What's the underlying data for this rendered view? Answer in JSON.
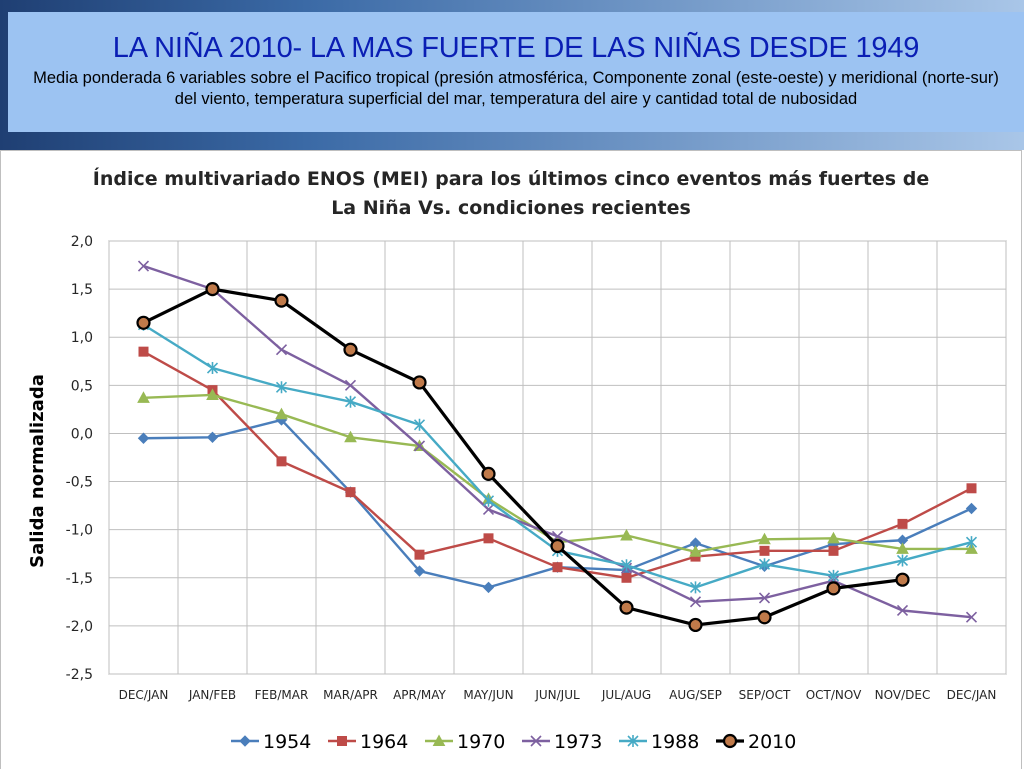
{
  "slide": {
    "title": "LA NIÑA 2010- LA MAS FUERTE DE LAS NIÑAS DESDE 1949",
    "subtitle": "Media ponderada 6 variables sobre el Pacifico tropical (presión atmosférica, Componente zonal (este-oeste) y meridional (norte-sur) del viento, temperatura superficial del mar, temperatura del aire y cantidad total de nubosidad"
  },
  "chart_data": {
    "type": "line",
    "title_lines": [
      "Índice multivariado ENOS (MEI) para los últimos cinco eventos más fuertes de",
      "La Niña Vs. condiciones recientes"
    ],
    "xlabel": "",
    "ylabel": "Salida normalizada",
    "ylim": [
      -2.5,
      2.0
    ],
    "ytick_values": [
      2.0,
      1.5,
      1.0,
      0.5,
      0.0,
      -0.5,
      -1.0,
      -1.5,
      -2.0,
      -2.5
    ],
    "yticks": [
      "2,0",
      "1,5",
      "1,0",
      "0,5",
      "0,0",
      "-0,5",
      "-1,0",
      "-1,5",
      "-2,0",
      "-2,5"
    ],
    "grid": true,
    "legend_position": "bottom",
    "categories": [
      "DEC/JAN",
      "JAN/FEB",
      "FEB/MAR",
      "MAR/APR",
      "APR/MAY",
      "MAY/JUN",
      "JUN/JUL",
      "JUL/AUG",
      "AUG/SEP",
      "SEP/OCT",
      "OCT/NOV",
      "NOV/DEC",
      "DEC/JAN"
    ],
    "series": [
      {
        "name": "1954",
        "color": "#4a7ebb",
        "marker": "diamond",
        "values": [
          -0.05,
          -0.04,
          0.14,
          -0.61,
          -1.43,
          -1.6,
          -1.39,
          -1.42,
          -1.14,
          -1.38,
          -1.15,
          -1.11,
          -0.78
        ]
      },
      {
        "name": "1964",
        "color": "#be4b48",
        "marker": "square",
        "values": [
          0.85,
          0.45,
          -0.29,
          -0.61,
          -1.26,
          -1.09,
          -1.39,
          -1.5,
          -1.28,
          -1.22,
          -1.22,
          -0.94,
          -0.57
        ]
      },
      {
        "name": "1970",
        "color": "#98b954",
        "marker": "triangle",
        "values": [
          0.37,
          0.4,
          0.2,
          -0.04,
          -0.13,
          -0.68,
          -1.13,
          -1.06,
          -1.23,
          -1.1,
          -1.09,
          -1.2,
          -1.2
        ]
      },
      {
        "name": "1973",
        "color": "#7d60a0",
        "marker": "x",
        "values": [
          1.74,
          1.5,
          0.87,
          0.5,
          -0.13,
          -0.79,
          -1.07,
          -1.4,
          -1.75,
          -1.71,
          -1.53,
          -1.84,
          -1.91
        ]
      },
      {
        "name": "1988",
        "color": "#46aac5",
        "marker": "star",
        "values": [
          1.13,
          0.68,
          0.48,
          0.33,
          0.09,
          -0.7,
          -1.22,
          -1.37,
          -1.6,
          -1.36,
          -1.48,
          -1.32,
          -1.13
        ]
      },
      {
        "name": "2010",
        "color": "#000000",
        "marker": "circle",
        "values": [
          1.15,
          1.5,
          1.38,
          0.87,
          0.53,
          -0.42,
          -1.17,
          -1.81,
          -1.99,
          -1.91,
          -1.61,
          -1.52,
          null
        ]
      }
    ]
  }
}
